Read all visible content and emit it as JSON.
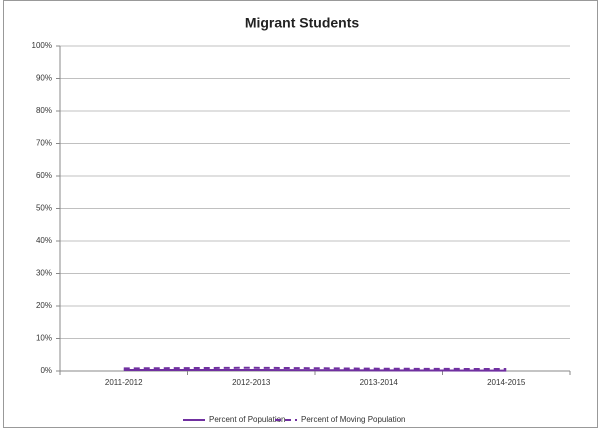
{
  "chart_data": {
    "type": "line",
    "title": "Migrant Students",
    "categories": [
      "2011-2012",
      "2012-2013",
      "2013-2014",
      "2014-2015"
    ],
    "series": [
      {
        "name": "Percent of Population",
        "color": "#7030a0",
        "dash": false,
        "values": [
          0.3,
          0.3,
          0.2,
          0.1
        ]
      },
      {
        "name": "Percent of Moving Population",
        "color": "#7030a0",
        "dash": true,
        "values": [
          0.8,
          1.0,
          0.7,
          0.6
        ]
      }
    ],
    "ylim": [
      0,
      100
    ],
    "yticks": [
      {
        "value": 0,
        "label": "0%"
      },
      {
        "value": 10,
        "label": "10%"
      },
      {
        "value": 20,
        "label": "20%"
      },
      {
        "value": 30,
        "label": "30%"
      },
      {
        "value": 40,
        "label": "40%"
      },
      {
        "value": 50,
        "label": "50%"
      },
      {
        "value": 60,
        "label": "60%"
      },
      {
        "value": 70,
        "label": "70%"
      },
      {
        "value": 80,
        "label": "80%"
      },
      {
        "value": 90,
        "label": "90%"
      },
      {
        "value": 100,
        "label": "100%"
      }
    ],
    "grid": true,
    "legend": "bottom"
  }
}
